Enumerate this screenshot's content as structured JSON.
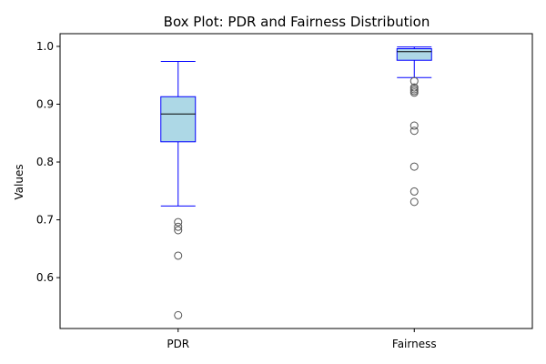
{
  "chart_data": {
    "type": "box",
    "title": "Box Plot: PDR and Fairness Distribution",
    "xlabel": "",
    "ylabel": "Values",
    "ylim": [
      0.512,
      1.022
    ],
    "yticks": [
      0.6,
      0.7,
      0.8,
      0.9,
      1.0
    ],
    "ytick_labels": [
      "0.6",
      "0.7",
      "0.8",
      "0.9",
      "1.0"
    ],
    "categories": [
      "PDR",
      "Fairness"
    ],
    "grid": false,
    "colors": {
      "box_fill": "#add8e6",
      "box_edge": "#0000ff",
      "median": "#000000",
      "flier": "#555555"
    },
    "series": [
      {
        "category": "PDR",
        "whisker_low": 0.724,
        "q1": 0.835,
        "median": 0.883,
        "q3": 0.913,
        "whisker_high": 0.974,
        "outliers": [
          0.696,
          0.688,
          0.682,
          0.638,
          0.535
        ]
      },
      {
        "category": "Fairness",
        "whisker_low": 0.946,
        "q1": 0.976,
        "median": 0.991,
        "q3": 0.996,
        "whisker_high": 0.999,
        "outliers": [
          0.94,
          0.929,
          0.926,
          0.923,
          0.92,
          0.863,
          0.854,
          0.792,
          0.749,
          0.731
        ]
      }
    ]
  }
}
